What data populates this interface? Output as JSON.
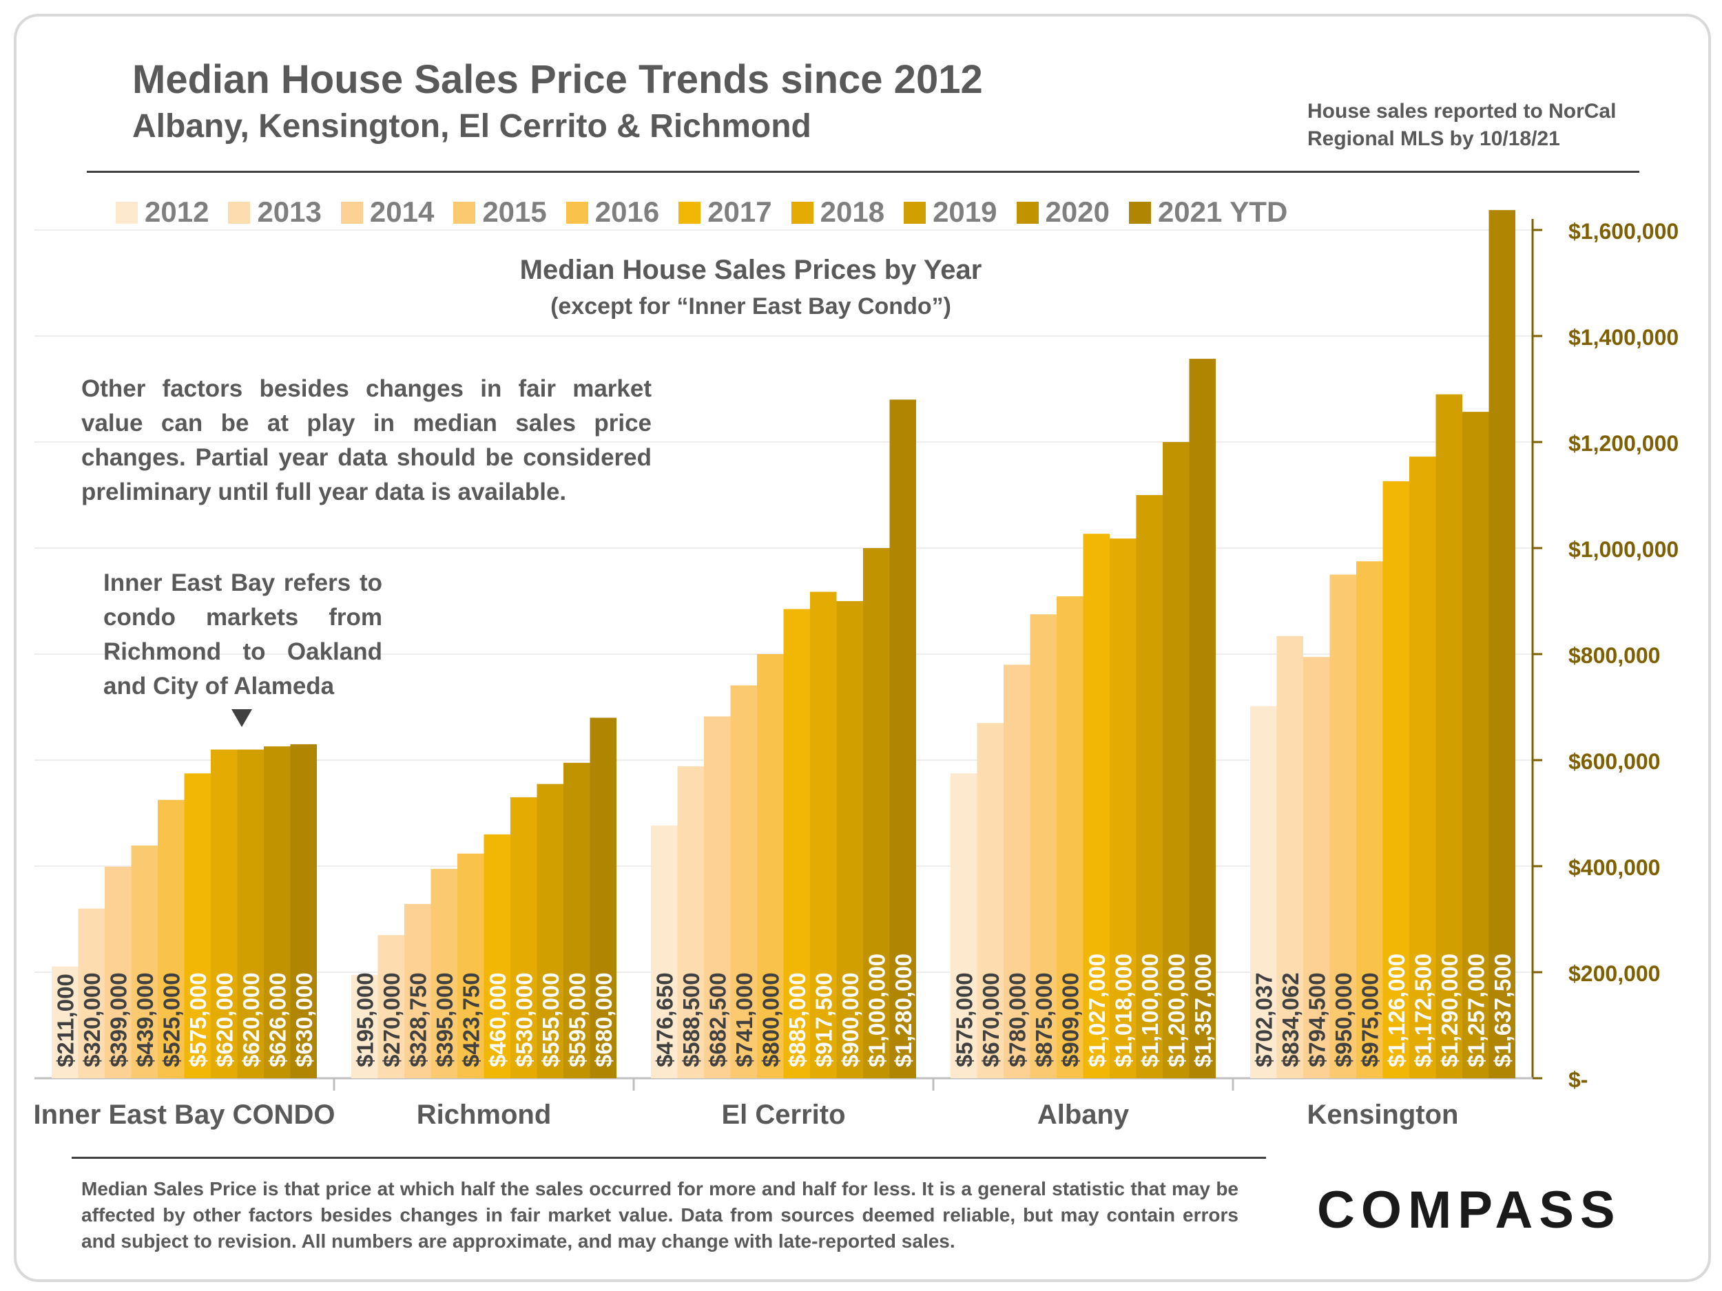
{
  "title": "Median House Sales Price Trends since 2012",
  "subtitle": "Albany, Kensington, El Cerrito & Richmond",
  "source_note": "House sales reported to NorCal Regional MLS by 10/18/21",
  "chart_title": "Median House Sales Prices by Year",
  "chart_subtitle": "(except for “Inner East Bay Condo”)",
  "note": "Other factors besides changes in fair market value can be at play in median sales price changes. Partial year data should be considered preliminary until full year data is available.",
  "annotation": "Inner East Bay refers to condo markets from Richmond to Oakland and City of Alameda",
  "footer": "Median Sales Price is that price at which half the sales occurred for more and half for less. It is a general statistic that may be affected by other factors besides changes in fair market value. Data from sources deemed reliable, but may contain errors and subject to revision.  All numbers are approximate, and may change with late-reported sales.",
  "logo": "COMPASS",
  "colors": {
    "series": [
      "#fde9cd",
      "#fddcaf",
      "#fcd193",
      "#fbc970",
      "#f9c24a",
      "#f2b705",
      "#e4ab03",
      "#d29f00",
      "#c29300",
      "#b08502"
    ],
    "axis": "#7f6000",
    "label_dark": "#404040",
    "label_light": "#ffffff"
  },
  "chart_data": {
    "type": "bar",
    "categories": [
      "Inner East Bay CONDO",
      "Richmond",
      "El Cerrito",
      "Albany",
      "Kensington"
    ],
    "series": [
      {
        "name": "2012",
        "values": [
          211000,
          195000,
          476650,
          575000,
          702037
        ],
        "labels": [
          "$211,000",
          "$195,000",
          "$476,650",
          "$575,000",
          "$702,037"
        ]
      },
      {
        "name": "2013",
        "values": [
          320000,
          270000,
          588500,
          670000,
          834062
        ],
        "labels": [
          "$320,000",
          "$270,000",
          "$588,500",
          "$670,000",
          "$834,062"
        ]
      },
      {
        "name": "2014",
        "values": [
          399000,
          328750,
          682500,
          780000,
          794500
        ],
        "labels": [
          "$399,000",
          "$328,750",
          "$682,500",
          "$780,000",
          "$794,500"
        ]
      },
      {
        "name": "2015",
        "values": [
          439000,
          395000,
          741000,
          875000,
          950000
        ],
        "labels": [
          "$439,000",
          "$395,000",
          "$741,000",
          "$875,000",
          "$950,000"
        ]
      },
      {
        "name": "2016",
        "values": [
          525000,
          423750,
          800000,
          909000,
          975000
        ],
        "labels": [
          "$525,000",
          "$423,750",
          "$800,000",
          "$909,000",
          "$975,000"
        ]
      },
      {
        "name": "2017",
        "values": [
          575000,
          460000,
          885000,
          1027000,
          1126000
        ],
        "labels": [
          "$575,000",
          "$460,000",
          "$885,000",
          "$1,027,000",
          "$1,126,000"
        ]
      },
      {
        "name": "2018",
        "values": [
          620000,
          530000,
          917500,
          1018000,
          1172500
        ],
        "labels": [
          "$620,000",
          "$530,000",
          "$917,500",
          "$1,018,000",
          "$1,172,500"
        ]
      },
      {
        "name": "2019",
        "values": [
          620000,
          555000,
          900000,
          1100000,
          1290000
        ],
        "labels": [
          "$620,000",
          "$555,000",
          "$900,000",
          "$1,100,000",
          "$1,290,000"
        ]
      },
      {
        "name": "2020",
        "values": [
          626000,
          595000,
          1000000,
          1200000,
          1257000
        ],
        "labels": [
          "$626,000",
          "$595,000",
          "$1,000,000",
          "$1,200,000",
          "$1,257,000"
        ]
      },
      {
        "name": "2021 YTD",
        "values": [
          630000,
          680000,
          1280000,
          1357000,
          1637500
        ],
        "labels": [
          "$630,000",
          "$680,000",
          "$1,280,000",
          "$1,357,000",
          "$1,637,500"
        ]
      }
    ],
    "ylim": [
      0,
      1600000
    ],
    "yticks": [
      0,
      200000,
      400000,
      600000,
      800000,
      1000000,
      1200000,
      1400000,
      1600000
    ],
    "ytick_labels": [
      "$-",
      "$200,000",
      "$400,000",
      "$600,000",
      "$800,000",
      "$1,000,000",
      "$1,200,000",
      "$1,400,000",
      "$1,600,000"
    ],
    "y_axis_side": "right",
    "grid": true,
    "legend_position": "top",
    "light_label_from_series": 5
  }
}
